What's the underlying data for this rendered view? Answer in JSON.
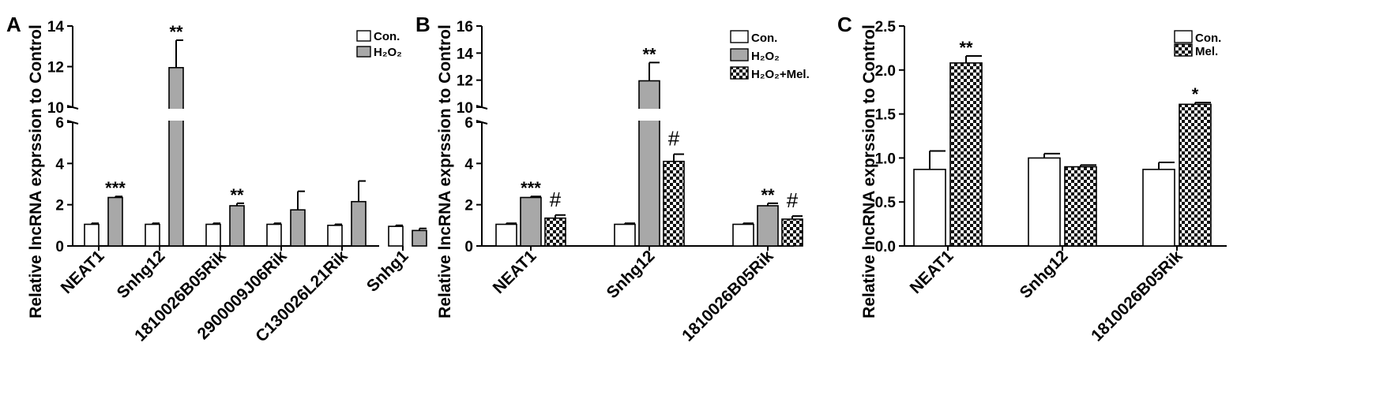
{
  "chart_data": [
    {
      "panel": "A",
      "type": "bar",
      "ylabel": "Relative lncRNA exprssion to Control",
      "categories": [
        "NEAT1",
        "Snhg12",
        "1810026B05Rik",
        "2900009J06Rik",
        "C130026L21Rik",
        "Snhg1"
      ],
      "broken_axis": true,
      "lower_range": [
        0,
        6
      ],
      "upper_range": [
        10,
        14
      ],
      "lower_ticks": [
        "0",
        "2",
        "4",
        "6"
      ],
      "upper_ticks": [
        "10",
        "12",
        "14"
      ],
      "series": [
        {
          "name": "Con.",
          "fill": "#ffffff",
          "values": [
            1.05,
            1.05,
            1.05,
            1.05,
            1.0,
            0.95
          ],
          "errors": [
            0.05,
            0.05,
            0.05,
            0.05,
            0.05,
            0.05
          ]
        },
        {
          "name": "H₂O₂",
          "fill": "#a8a8a8",
          "values": [
            2.35,
            11.95,
            1.95,
            1.75,
            2.15,
            0.75
          ],
          "errors": [
            0.05,
            1.35,
            0.12,
            0.9,
            1.0,
            0.1
          ]
        }
      ],
      "annotations": [
        {
          "category": 0,
          "series": 1,
          "text": "***"
        },
        {
          "category": 1,
          "series": 1,
          "text": "**"
        },
        {
          "category": 2,
          "series": 1,
          "text": "**"
        }
      ]
    },
    {
      "panel": "B",
      "type": "bar",
      "ylabel": "Relative lncRNA exprssion to Control",
      "categories": [
        "NEAT1",
        "Snhg12",
        "1810026B05Rik"
      ],
      "broken_axis": true,
      "lower_range": [
        0,
        6
      ],
      "upper_range": [
        10,
        16
      ],
      "lower_ticks": [
        "0",
        "2",
        "4",
        "6"
      ],
      "upper_ticks": [
        "10",
        "12",
        "14",
        "16"
      ],
      "series": [
        {
          "name": "Con.",
          "fill": "#ffffff",
          "values": [
            1.05,
            1.05,
            1.05
          ],
          "errors": [
            0.05,
            0.05,
            0.05
          ]
        },
        {
          "name": "H₂O₂",
          "fill": "#a8a8a8",
          "values": [
            2.35,
            11.95,
            1.95
          ],
          "errors": [
            0.05,
            1.35,
            0.12
          ]
        },
        {
          "name": "H₂O₂+Mel.",
          "fill": "checker",
          "values": [
            1.35,
            4.1,
            1.3
          ],
          "errors": [
            0.15,
            0.35,
            0.15
          ]
        }
      ],
      "annotations": [
        {
          "category": 0,
          "series": 1,
          "text": "***"
        },
        {
          "category": 1,
          "series": 1,
          "text": "**"
        },
        {
          "category": 2,
          "series": 1,
          "text": "**"
        },
        {
          "category": 0,
          "series": 2,
          "text": "#"
        },
        {
          "category": 1,
          "series": 2,
          "text": "#"
        },
        {
          "category": 2,
          "series": 2,
          "text": "#"
        }
      ]
    },
    {
      "panel": "C",
      "type": "bar",
      "ylabel": "Relative lncRNA exprssion to Control",
      "categories": [
        "NEAT1",
        "Snhg12",
        "1810026B05Rik"
      ],
      "broken_axis": false,
      "ylim": [
        0,
        2.5
      ],
      "ticks": [
        "0.0",
        "0.5",
        "1.0",
        "1.5",
        "2.0",
        "2.5"
      ],
      "series": [
        {
          "name": "Con.",
          "fill": "#ffffff",
          "values": [
            0.87,
            1.0,
            0.87
          ],
          "errors": [
            0.21,
            0.05,
            0.08
          ]
        },
        {
          "name": "Mel.",
          "fill": "checker",
          "values": [
            2.08,
            0.9,
            1.61
          ],
          "errors": [
            0.08,
            0.02,
            0.02
          ]
        }
      ],
      "annotations": [
        {
          "category": 0,
          "series": 1,
          "text": "**"
        },
        {
          "category": 2,
          "series": 1,
          "text": "*"
        }
      ]
    }
  ]
}
